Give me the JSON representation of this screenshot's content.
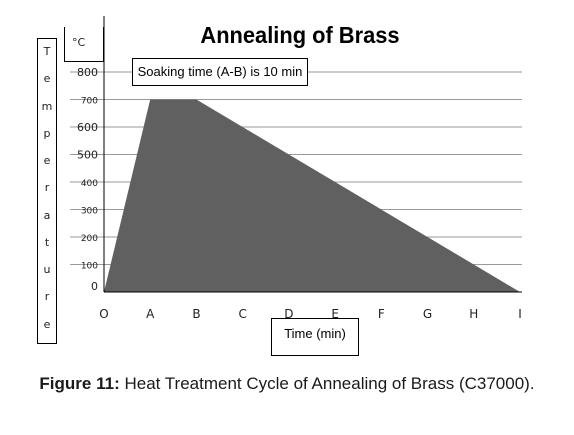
{
  "chart_data": {
    "type": "area",
    "title": "Annealing of Brass",
    "unit": "°C",
    "ylabel": "Temperature",
    "xlabel": "Time (min)",
    "annotation": "Soaking time (A-B) is 10 min",
    "x_categories": [
      "O",
      "A",
      "B",
      "C",
      "D",
      "E",
      "F",
      "G",
      "H",
      "I"
    ],
    "y_ticks": [
      0,
      100,
      200,
      300,
      400,
      500,
      600,
      700,
      800
    ],
    "ylim": [
      0,
      800
    ],
    "grid": true,
    "series": [
      {
        "x": [
          "O",
          "A",
          "B",
          "I"
        ],
        "y": [
          0,
          700,
          700,
          0
        ]
      }
    ],
    "colors": {
      "fill": "#606060",
      "grid": "#9a9a9a",
      "axis": "#000000"
    }
  },
  "caption": {
    "label": "Figure 11:",
    "text": " Heat Treatment Cycle of Annealing of Brass (C37000)."
  }
}
